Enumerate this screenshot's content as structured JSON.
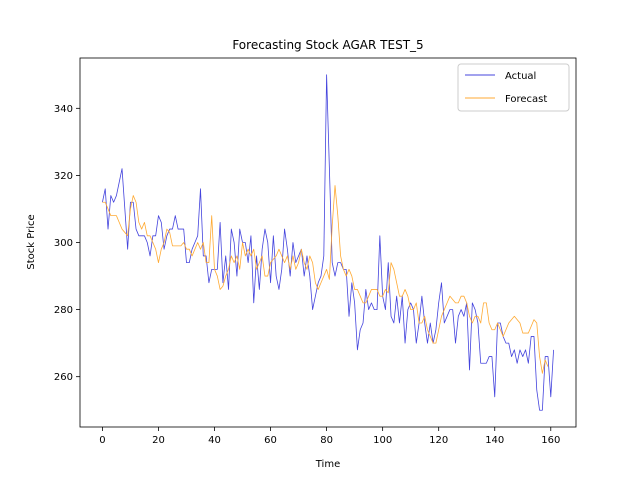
{
  "chart_data": {
    "type": "line",
    "title": "Forecasting Stock AGAR TEST_5",
    "xlabel": "Time",
    "ylabel": "Stock Price",
    "xlim": [
      -8,
      169
    ],
    "ylim": [
      245,
      355
    ],
    "xticks": [
      0,
      20,
      40,
      60,
      80,
      100,
      120,
      140,
      160
    ],
    "yticks": [
      260,
      280,
      300,
      320,
      340
    ],
    "grid": false,
    "legend": "top-right",
    "series": [
      {
        "name": "Actual",
        "color": "#4444dd",
        "values": [
          312,
          316,
          304,
          314,
          312,
          314,
          318,
          322,
          310,
          298,
          312,
          312,
          304,
          302,
          302,
          302,
          300,
          296,
          302,
          302,
          308,
          306,
          298,
          302,
          304,
          304,
          308,
          304,
          304,
          304,
          294,
          294,
          298,
          300,
          302,
          316,
          296,
          296,
          288,
          292,
          292,
          292,
          306,
          288,
          296,
          286,
          304,
          300,
          290,
          304,
          300,
          300,
          294,
          302,
          282,
          296,
          286,
          298,
          304,
          300,
          288,
          302,
          290,
          286,
          292,
          304,
          298,
          290,
          300,
          294,
          296,
          298,
          290,
          296,
          290,
          280,
          284,
          288,
          290,
          296,
          350,
          322,
          294,
          290,
          294,
          294,
          292,
          292,
          278,
          288,
          282,
          268,
          274,
          276,
          286,
          280,
          282,
          280,
          280,
          302,
          284,
          280,
          294,
          278,
          276,
          284,
          276,
          284,
          270,
          280,
          282,
          280,
          270,
          276,
          284,
          276,
          270,
          276,
          270,
          274,
          282,
          288,
          276,
          278,
          280,
          280,
          270,
          278,
          280,
          278,
          282,
          262,
          282,
          280,
          276,
          264,
          264,
          264,
          266,
          266,
          254,
          276,
          276,
          272,
          270,
          270,
          266,
          268,
          264,
          268,
          266,
          268,
          264,
          272,
          272,
          256,
          250,
          250,
          266,
          266,
          254,
          268
        ]
      },
      {
        "name": "Forecast",
        "color": "#ffaa33",
        "values": [
          312,
          312,
          310,
          308,
          308,
          308,
          306,
          304,
          303,
          302,
          310,
          314,
          312,
          306,
          304,
          306,
          302,
          302,
          300,
          298,
          294,
          298,
          300,
          304,
          303,
          299,
          299,
          299,
          299,
          300,
          298,
          298,
          296,
          298,
          300,
          298,
          300,
          294,
          294,
          308,
          292,
          290,
          286,
          287,
          290,
          292,
          296,
          294,
          296,
          292,
          300,
          296,
          298,
          296,
          298,
          292,
          294,
          296,
          290,
          290,
          294,
          295,
          296,
          298,
          296,
          294,
          296,
          292,
          296,
          292,
          294,
          298,
          294,
          292,
          296,
          294,
          288,
          286,
          288,
          290,
          292,
          289,
          305,
          317,
          308,
          296,
          292,
          290,
          292,
          290,
          286,
          286,
          284,
          282,
          282,
          284,
          286,
          286,
          286,
          284,
          284,
          286,
          285,
          294,
          292,
          288,
          284,
          284,
          286,
          284,
          280,
          280,
          282,
          276,
          276,
          278,
          274,
          272,
          270,
          270,
          274,
          278,
          280,
          282,
          284,
          283,
          282,
          282,
          284,
          284,
          282,
          278,
          276,
          278,
          278,
          276,
          282,
          282,
          276,
          274,
          274,
          276,
          274,
          272,
          274,
          276,
          277,
          278,
          277,
          276,
          273,
          273,
          273,
          275,
          277,
          276,
          266,
          261,
          265,
          263
        ]
      }
    ]
  }
}
